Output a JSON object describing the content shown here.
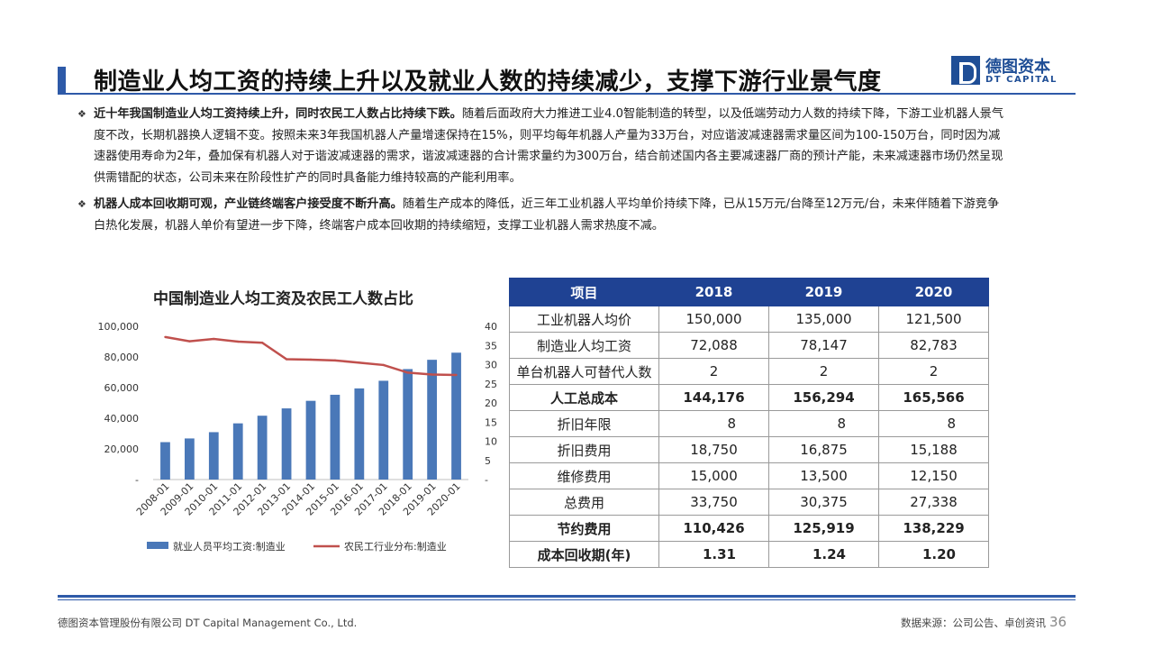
{
  "header": {
    "title": "制造业人均工资的持续上升以及就业人数的持续减少，支撑下游行业景气度",
    "logo_cn": "德图资本",
    "logo_en": "DT CAPITAL"
  },
  "bullets": [
    {
      "lead": "近十年我国制造业人均工资持续上升，同时农民工人数占比持续下跌。",
      "body": "随着后面政府大力推进工业4.0智能制造的转型，以及低端劳动力人数的持续下降，下游工业机器人景气度不改，长期机器换人逻辑不变。按照未来3年我国机器人产量增速保持在15%，则平均每年机器人产量为33万台，对应谐波减速器需求量区间为100-150万台，同时因为减速器使用寿命为2年，叠加保有机器人对于谐波减速器的需求，谐波减速器的合计需求量约为300万台，结合前述国内各主要减速器厂商的预计产能，未来减速器市场仍然呈现供需错配的状态，公司未来在阶段性扩产的同时具备能力维持较高的产能利用率。"
    },
    {
      "lead": "机器人成本回收期可观，产业链终端客户接受度不断升高。",
      "body": "随着生产成本的降低，近三年工业机器人平均单价持续下降，已从15万元/台降至12万元/台，未来伴随着下游竞争白热化发展，机器人单价有望进一步下降，终端客户成本回收期的持续缩短，支撑工业机器人需求热度不减。"
    }
  ],
  "chart_data": {
    "type": "bar+line",
    "title": "中国制造业人均工资及农民工人数占比",
    "categories": [
      "2008-01",
      "2009-01",
      "2010-01",
      "2011-01",
      "2012-01",
      "2013-01",
      "2014-01",
      "2015-01",
      "2016-01",
      "2017-01",
      "2018-01",
      "2019-01",
      "2020-01"
    ],
    "series": [
      {
        "name": "就业人员平均工资:制造业",
        "type": "bar",
        "axis": "left",
        "color": "#4a78b8",
        "values": [
          24404,
          26810,
          30916,
          36665,
          41650,
          46431,
          51369,
          55324,
          59470,
          64452,
          72088,
          78147,
          82783
        ]
      },
      {
        "name": "农民工行业分布:制造业",
        "type": "line",
        "axis": "right",
        "color": "#c0504d",
        "values": [
          37.2,
          36.1,
          36.7,
          36.0,
          35.7,
          31.4,
          31.3,
          31.1,
          30.5,
          29.9,
          27.9,
          27.4,
          27.3
        ]
      }
    ],
    "y_left": {
      "min": 0,
      "max": 100000,
      "ticks": [
        "-",
        "20,000",
        "40,000",
        "60,000",
        "80,000",
        "100,000"
      ]
    },
    "y_right": {
      "min": 0,
      "max": 40,
      "ticks": [
        "-",
        "5",
        "10",
        "15",
        "20",
        "25",
        "30",
        "35",
        "40"
      ]
    },
    "legend_position": "bottom"
  },
  "table": {
    "headers": [
      "项目",
      "2018",
      "2019",
      "2020"
    ],
    "rows": [
      {
        "cells": [
          "工业机器人均价",
          "150,000",
          "135,000",
          "121,500"
        ],
        "bold": false,
        "align": "center"
      },
      {
        "cells": [
          "制造业人均工资",
          "72,088",
          "78,147",
          "82,783"
        ],
        "bold": false,
        "align": "center"
      },
      {
        "cells": [
          "单台机器人可替代人数",
          "2",
          "2",
          "2"
        ],
        "bold": false,
        "align": "center"
      },
      {
        "cells": [
          "人工总成本",
          "144,176",
          "156,294",
          "165,566"
        ],
        "bold": true,
        "align": "center"
      },
      {
        "cells": [
          "折旧年限",
          "8",
          "8",
          "8"
        ],
        "bold": false,
        "align": "right"
      },
      {
        "cells": [
          "折旧费用",
          "18,750",
          "16,875",
          "15,188"
        ],
        "bold": false,
        "align": "center"
      },
      {
        "cells": [
          "维修费用",
          "15,000",
          "13,500",
          "12,150"
        ],
        "bold": false,
        "align": "center"
      },
      {
        "cells": [
          "总费用",
          "33,750",
          "30,375",
          "27,338"
        ],
        "bold": false,
        "align": "center"
      },
      {
        "cells": [
          "节约费用",
          "110,426",
          "125,919",
          "138,229"
        ],
        "bold": true,
        "align": "center"
      },
      {
        "cells": [
          "成本回收期(年)",
          "1.31",
          "1.24",
          "1.20"
        ],
        "bold": true,
        "align": "right"
      }
    ]
  },
  "footer": {
    "company": "德图资本管理股份有限公司  DT Capital Management  Co., Ltd.",
    "source": "数据来源：公司公告、卓创资讯",
    "page": "36"
  },
  "colors": {
    "brand": "#2e5aa8",
    "table_header": "#1f4293",
    "bar": "#4a78b8",
    "line": "#c0504d"
  }
}
